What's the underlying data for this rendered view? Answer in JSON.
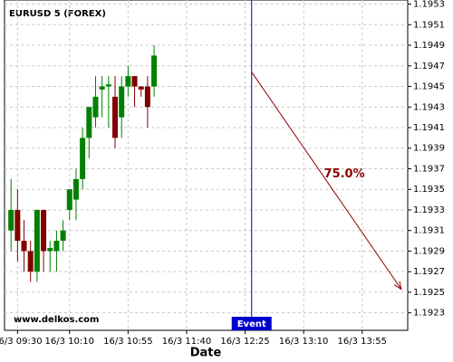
{
  "chart_data": {
    "type": "candlestick",
    "title": "EURUSD 5 (FOREX)",
    "x_label": "Date",
    "watermark": "www.delkos.com",
    "grid": true,
    "up_color": "#008000",
    "down_color": "#800000",
    "x": [
      "16/3 09:25",
      "16/3 09:30",
      "16/3 09:35",
      "16/3 09:40",
      "16/3 09:45",
      "16/3 09:50",
      "16/3 09:55",
      "16/3 10:00",
      "16/3 10:05",
      "16/3 10:10",
      "16/3 10:15",
      "16/3 10:20",
      "16/3 10:25",
      "16/3 10:30",
      "16/3 10:35",
      "16/3 10:40",
      "16/3 10:45",
      "16/3 10:50",
      "16/3 10:55",
      "16/3 11:00",
      "16/3 11:05",
      "16/3 11:10",
      "16/3 11:15"
    ],
    "open": [
      1.1931,
      1.1933,
      1.193,
      1.1929,
      1.1927,
      1.1933,
      1.1929,
      1.1929,
      1.193,
      1.1933,
      1.1934,
      1.1936,
      1.194,
      1.1942,
      1.19447,
      1.1945,
      1.1944,
      1.1942,
      1.1945,
      1.1946,
      1.1945,
      1.1945,
      1.1945
    ],
    "high": [
      1.1936,
      1.1935,
      1.1932,
      1.193,
      1.1933,
      1.1933,
      1.193,
      1.1931,
      1.1932,
      1.1935,
      1.1937,
      1.1941,
      1.1943,
      1.1946,
      1.1946,
      1.1946,
      1.1946,
      1.1946,
      1.1947,
      1.1946,
      1.1945,
      1.1946,
      1.1949
    ],
    "low": [
      1.1929,
      1.1928,
      1.1927,
      1.1926,
      1.1926,
      1.1927,
      1.1927,
      1.1927,
      1.1929,
      1.1932,
      1.1932,
      1.1935,
      1.1938,
      1.1941,
      1.1942,
      1.1941,
      1.1939,
      1.194,
      1.1944,
      1.1943,
      1.1944,
      1.1941,
      1.1944
    ],
    "close": [
      1.1933,
      1.193,
      1.1929,
      1.1927,
      1.1933,
      1.1929,
      1.19293,
      1.193,
      1.1931,
      1.1935,
      1.1936,
      1.194,
      1.1943,
      1.1944,
      1.1945,
      1.19452,
      1.194,
      1.1945,
      1.1946,
      1.1945,
      1.19447,
      1.1943,
      1.1948
    ],
    "xlim": [
      "16/3 09:20",
      "16/3 14:30"
    ],
    "xticks": [
      "16/3 09:30",
      "16/3 10:10",
      "16/3 10:55",
      "16/3 11:40",
      "16/3 12:25",
      "16/3 13:10",
      "16/3 13:55"
    ],
    "ylim": [
      1.19213,
      1.19534
    ],
    "yticks": [
      1.1953,
      1.1951,
      1.1949,
      1.1947,
      1.1945,
      1.1943,
      1.1941,
      1.1939,
      1.1937,
      1.1935,
      1.1933,
      1.1931,
      1.1929,
      1.1927,
      1.1925,
      1.1923
    ],
    "event": {
      "label": "Event",
      "x": "16/3 12:30",
      "color": "#0000cc"
    },
    "forecast": {
      "label": "75.0%",
      "color": "#8b0000",
      "start": {
        "x": "16/3 12:30",
        "y": 1.19464
      },
      "end": {
        "x": "16/3 14:25",
        "y": 1.19253
      }
    }
  }
}
